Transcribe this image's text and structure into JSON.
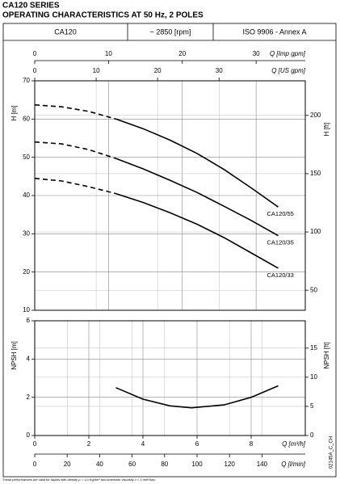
{
  "header": {
    "title": "CA120 SERIES",
    "subtitle": "OPERATING CHARACTERISTICS AT 50 Hz, 2 POLES",
    "info": [
      "CA120",
      "~ 2850 [rpm]",
      "ISO 9906 - Annex A"
    ]
  },
  "chart_data": [
    {
      "type": "line",
      "xlim": [
        0,
        10
      ],
      "x_axes": [
        {
          "label": "Q [Imp gpm]",
          "xlim": [
            0,
            36.66
          ],
          "xticks": [
            0,
            10,
            20,
            30
          ]
        },
        {
          "label": "Q [US gpm]",
          "xlim": [
            0,
            44.03
          ],
          "xticks": [
            0,
            10,
            20,
            30
          ]
        }
      ],
      "ylabel": "H [m]",
      "ylim": [
        10,
        70
      ],
      "yticks": [
        10,
        20,
        30,
        40,
        50,
        60,
        70
      ],
      "y2label": "H [ft]",
      "y2lim": [
        32.81,
        229.66
      ],
      "y2ticks": [
        50,
        100,
        150,
        200
      ],
      "dash_end": 3,
      "grid": true,
      "color": "#000000",
      "series": [
        {
          "name": "CA120/55",
          "x": [
            0,
            1,
            2,
            3,
            4,
            5,
            6,
            7,
            8,
            9
          ],
          "values": [
            63.7,
            63.2,
            62,
            60,
            57.5,
            54.5,
            51,
            46.8,
            42,
            37
          ]
        },
        {
          "name": "CA120/35",
          "x": [
            0,
            1,
            2,
            3,
            4,
            5,
            6,
            7,
            8,
            9
          ],
          "values": [
            54,
            53.5,
            52,
            49.7,
            47,
            44,
            40.8,
            37.2,
            33.5,
            29.5
          ]
        },
        {
          "name": "CA120/33",
          "x": [
            0,
            1,
            2,
            3,
            4,
            5,
            6,
            7,
            8,
            9
          ],
          "values": [
            44.5,
            43.8,
            42.3,
            40.5,
            38.2,
            35.5,
            32.5,
            29,
            25,
            21
          ]
        }
      ]
    },
    {
      "type": "line",
      "xlim": [
        0,
        10
      ],
      "x_axes": [
        {
          "label": "Q [m³/h]",
          "xlim": [
            0,
            10
          ],
          "xticks": [
            0,
            2,
            4,
            6,
            8
          ]
        },
        {
          "label": "Q [l/min]",
          "xlim": [
            0,
            166.67
          ],
          "xticks": [
            0,
            20,
            40,
            60,
            80,
            100,
            120,
            140
          ]
        }
      ],
      "ylabel": "NPSH [m]",
      "ylim": [
        0,
        6
      ],
      "yticks": [
        0,
        2,
        4,
        6
      ],
      "y2label": "NPSH [ft]",
      "y2lim": [
        0,
        19.685
      ],
      "y2ticks": [
        0,
        5,
        10,
        15
      ],
      "grid": true,
      "color": "#000000",
      "series": [
        {
          "x": [
            3,
            4,
            5,
            5.8,
            7,
            8,
            9
          ],
          "values": [
            2.5,
            1.9,
            1.55,
            1.45,
            1.6,
            2.0,
            2.6
          ]
        }
      ]
    }
  ],
  "footnote": "These performances are valid for liquids with density ρ = 1.0 Kg/dm³ and kinematic viscosity ν = 1 mm²/sec.",
  "code": "02145A_C_CH"
}
